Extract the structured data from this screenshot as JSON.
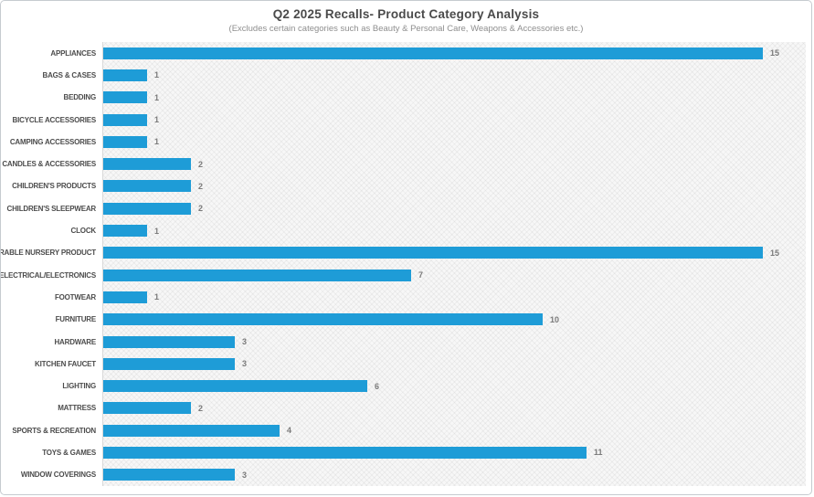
{
  "chart_data": {
    "type": "bar",
    "orientation": "horizontal",
    "title": "Q2 2025 Recalls- Product Category Analysis",
    "subtitle": "(Excludes certain categories such as Beauty & Personal Care, Weapons & Accessories etc.)",
    "categories": [
      "APPLIANCES",
      "BAGS & CASES",
      "BEDDING",
      "BICYCLE ACCESSORIES",
      "CAMPING ACCESSORIES",
      "CANDLES & ACCESSORIES",
      "CHILDREN'S PRODUCTS",
      "CHILDREN'S SLEEPWEAR",
      "CLOCK",
      "DURABLE NURSERY PRODUCT",
      "ELECTRICAL/ELECTRONICS",
      "FOOTWEAR",
      "FURNITURE",
      "HARDWARE",
      "KITCHEN FAUCET",
      "LIGHTING",
      "MATTRESS",
      "SPORTS & RECREATION",
      "TOYS & GAMES",
      "WINDOW COVERINGS"
    ],
    "values": [
      15,
      1,
      1,
      1,
      1,
      2,
      2,
      2,
      1,
      15,
      7,
      1,
      10,
      3,
      3,
      6,
      2,
      4,
      11,
      3
    ],
    "xlim": [
      0,
      16
    ],
    "grid": false,
    "legend": false,
    "data_labels": "outside-end",
    "bar_color": "#1E9CD7"
  }
}
